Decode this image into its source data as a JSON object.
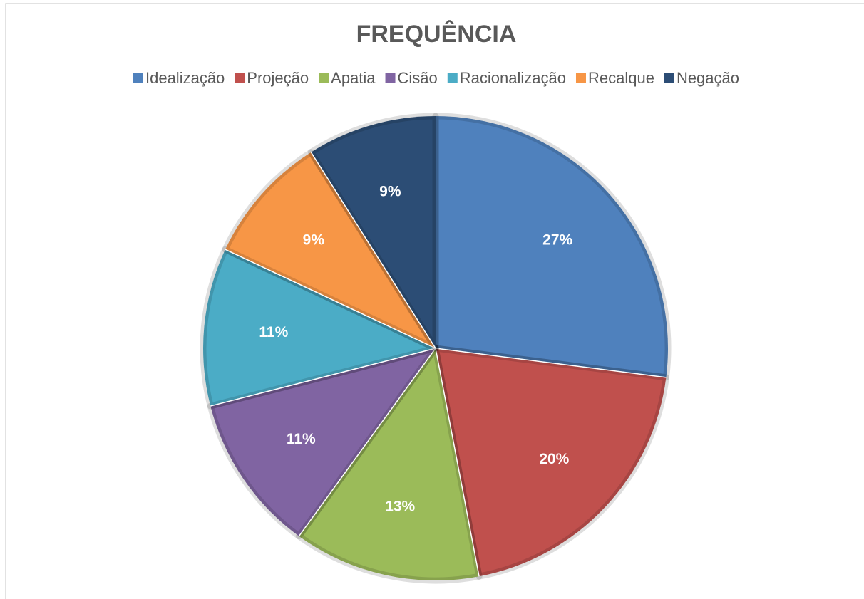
{
  "chart_data": {
    "type": "pie",
    "title": "FREQUÊNCIA",
    "categories": [
      "Idealização",
      "Projeção",
      "Apatia",
      "Cisão",
      "Racionalização",
      "Recalque",
      "Negação"
    ],
    "values": [
      27,
      20,
      13,
      11,
      11,
      9,
      9
    ],
    "value_labels": [
      "27%",
      "20%",
      "13%",
      "11%",
      "11%",
      "9%",
      "9%"
    ],
    "colors": [
      "#4f81bd",
      "#c0504d",
      "#9bbb59",
      "#8064a2",
      "#4bacc6",
      "#f79646",
      "#2c4d75"
    ],
    "legend": "top"
  }
}
